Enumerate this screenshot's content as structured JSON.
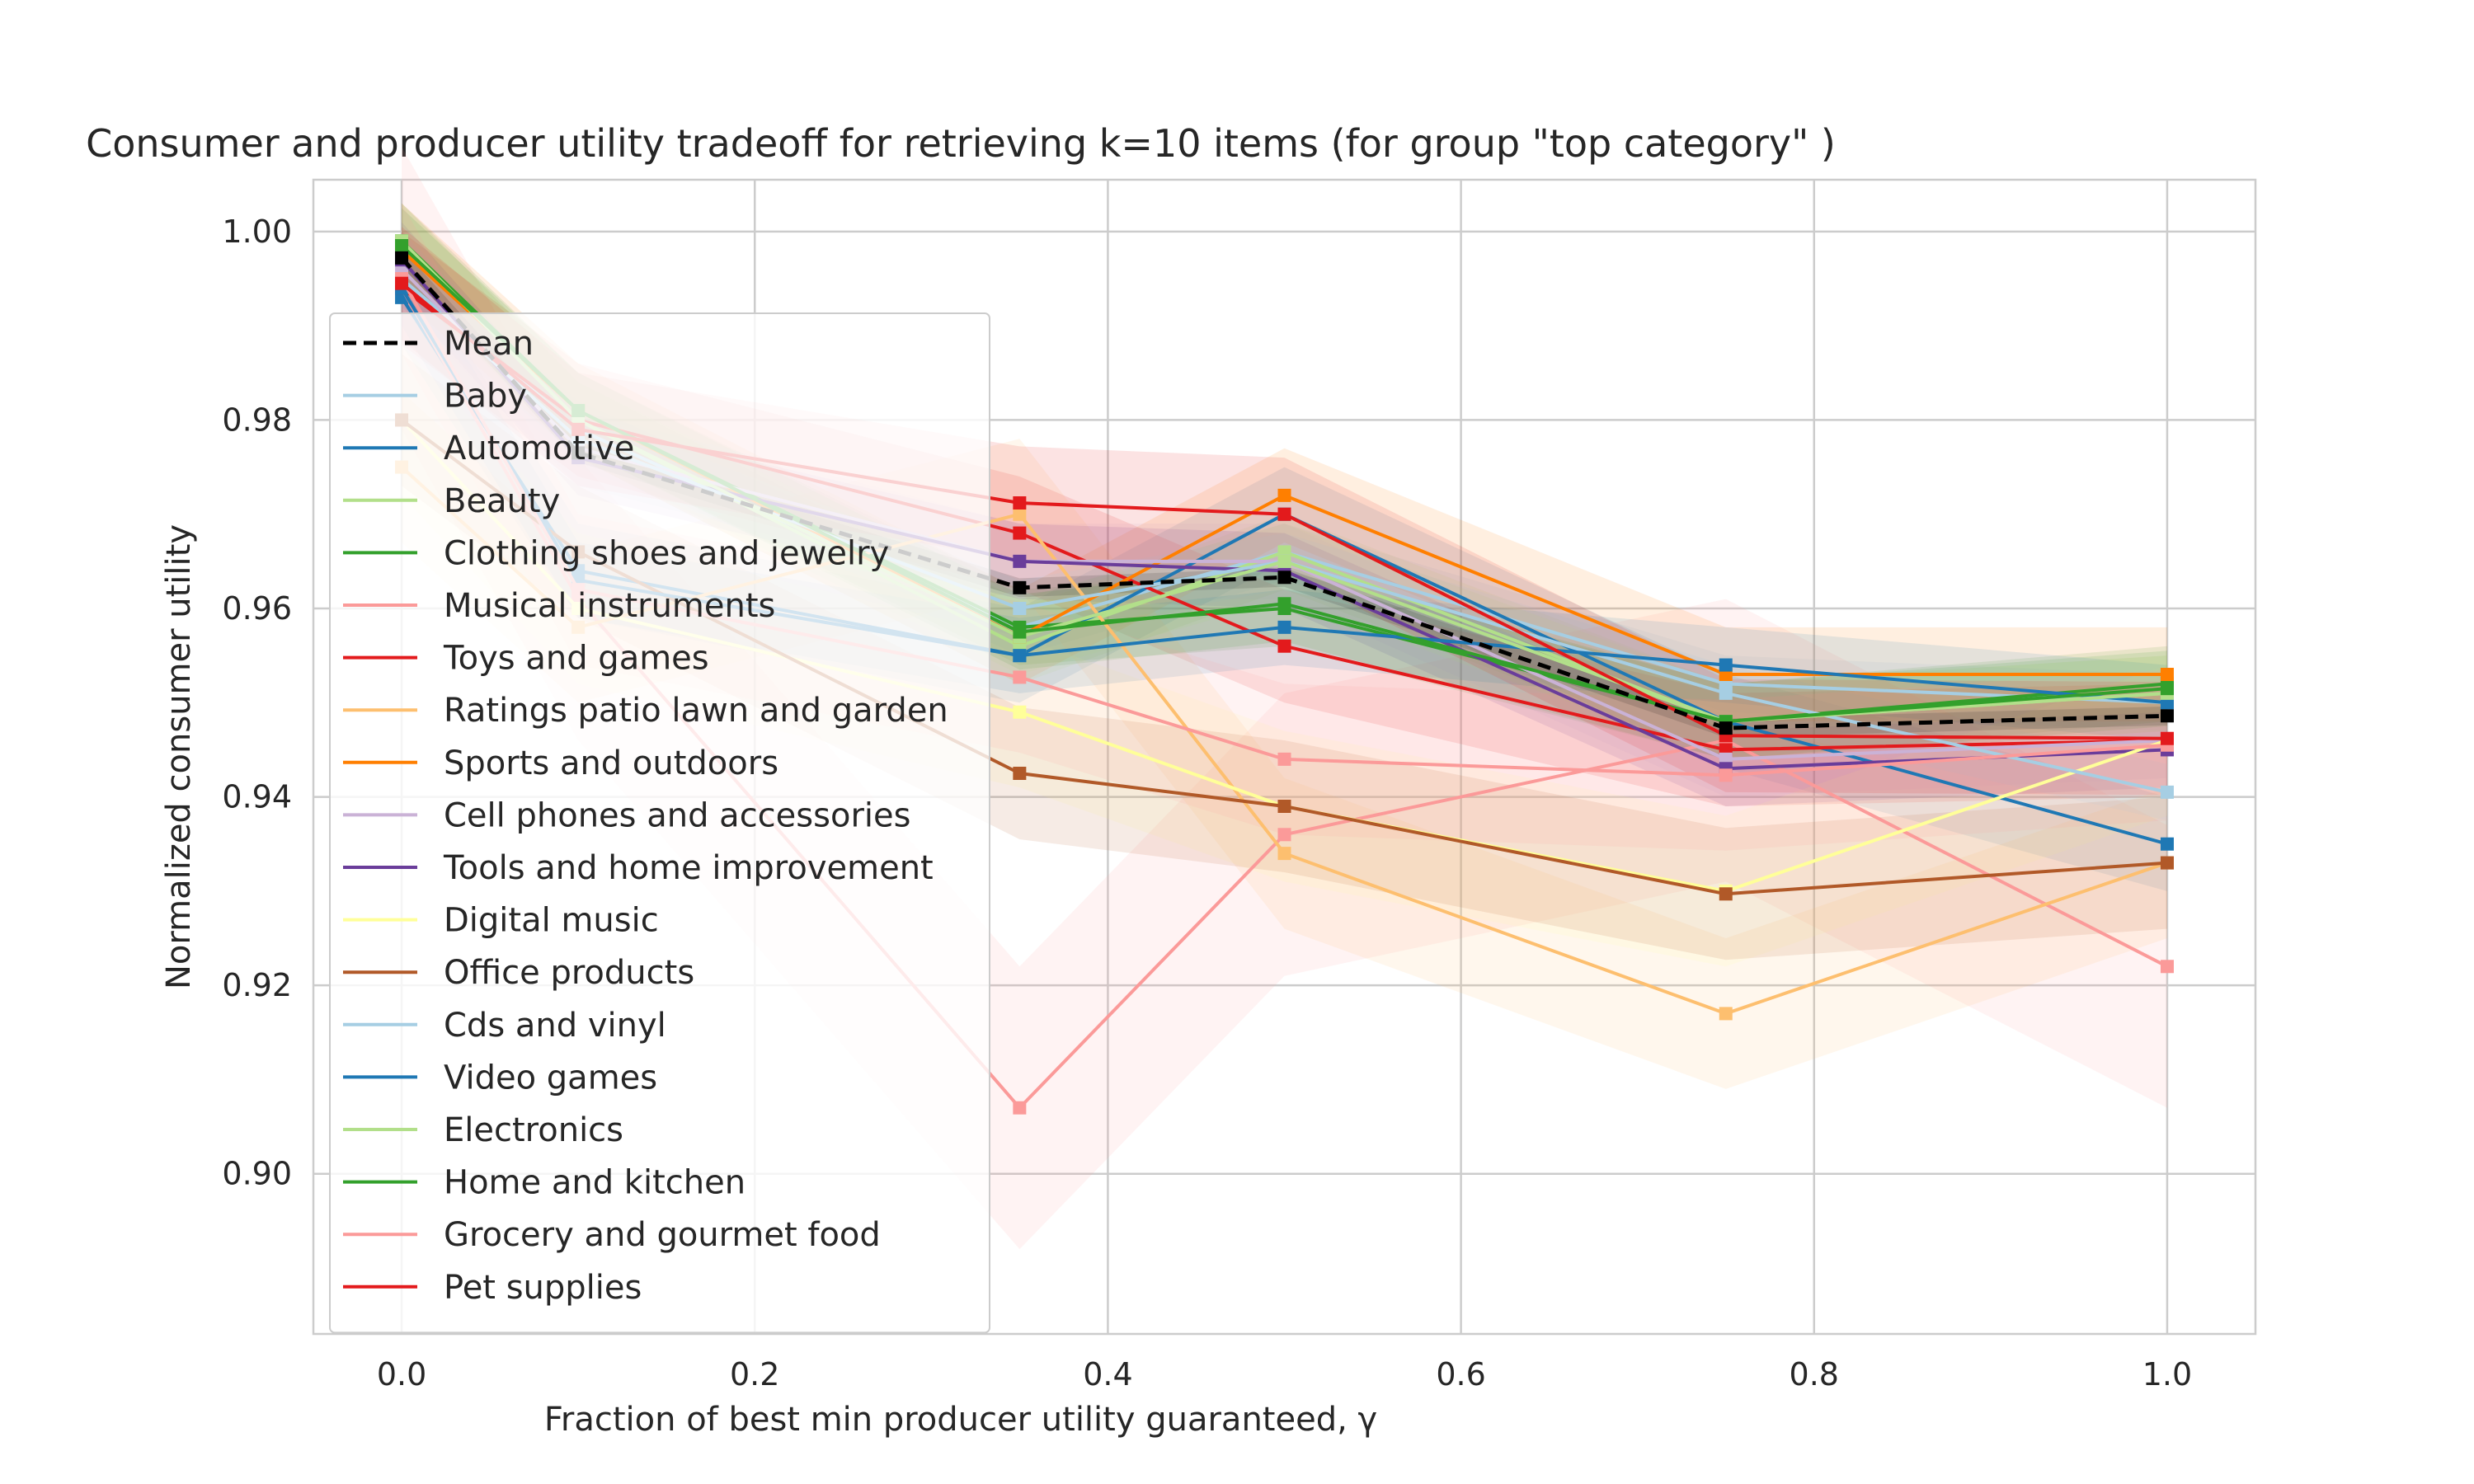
{
  "chart_data": {
    "type": "line",
    "title": "Consumer and producer utility tradeoff for retrieving k=10 items (for group \"top category\" )",
    "xlabel": "Fraction of best min producer utility guaranteed, γ",
    "ylabel": "Normalized consumer utility",
    "xlim": [
      -0.05,
      1.05
    ],
    "ylim": [
      0.883,
      1.0055
    ],
    "xticks": [
      0.0,
      0.2,
      0.4,
      0.6,
      0.8,
      1.0
    ],
    "xtick_labels": [
      "0.0",
      "0.2",
      "0.4",
      "0.6",
      "0.8",
      "1.0"
    ],
    "yticks": [
      0.9,
      0.92,
      0.94,
      0.96,
      0.98,
      1.0
    ],
    "ytick_labels": [
      "0.90",
      "0.92",
      "0.94",
      "0.96",
      "0.98",
      "1.00"
    ],
    "grid": true,
    "legend_position": "left",
    "x": [
      0.0,
      0.1,
      0.35,
      0.5,
      0.75,
      1.0
    ],
    "series": [
      {
        "name": "Mean",
        "color": "#000000",
        "dashed": true,
        "values": [
          0.9972,
          0.9765,
          0.9622,
          0.9633,
          0.9473,
          0.9486
        ],
        "band": 0.001
      },
      {
        "name": "Baby",
        "color": "#a6cee3",
        "values": [
          0.995,
          0.979,
          0.958,
          0.966,
          0.952,
          0.95
        ],
        "band": 0.003
      },
      {
        "name": "Automotive",
        "color": "#1f78b4",
        "values": [
          0.993,
          0.964,
          0.955,
          0.97,
          0.948,
          0.935
        ],
        "band": 0.005
      },
      {
        "name": "Beauty",
        "color": "#b2df8a",
        "values": [
          0.999,
          0.98,
          0.956,
          0.966,
          0.948,
          0.951
        ],
        "band": 0.004
      },
      {
        "name": "Clothing shoes and jewelry",
        "color": "#33a02c",
        "values": [
          0.999,
          0.981,
          0.958,
          0.96,
          0.948,
          0.952
        ],
        "band": 0.004
      },
      {
        "name": "Musical instruments",
        "color": "#fb9a99",
        "values": [
          0.994,
          0.961,
          0.907,
          0.936,
          0.946,
          0.922
        ],
        "band": 0.015
      },
      {
        "name": "Toys and games",
        "color": "#e31a1c",
        "values": [
          0.994,
          0.98,
          0.968,
          0.956,
          0.945,
          0.946
        ],
        "band": 0.006
      },
      {
        "name": "Ratings patio lawn and garden",
        "color": "#fdbf6f",
        "values": [
          0.975,
          0.958,
          0.97,
          0.934,
          0.917,
          0.933
        ],
        "band": 0.008
      },
      {
        "name": "Sports and outdoors",
        "color": "#ff7f00",
        "values": [
          0.998,
          0.981,
          0.957,
          0.972,
          0.953,
          0.953
        ],
        "band": 0.005
      },
      {
        "name": "Cell phones and accessories",
        "color": "#cab2d6",
        "values": [
          0.996,
          0.977,
          0.965,
          0.965,
          0.944,
          0.946
        ],
        "band": 0.004
      },
      {
        "name": "Tools and home improvement",
        "color": "#6a3d9a",
        "values": [
          0.997,
          0.976,
          0.965,
          0.964,
          0.943,
          0.945
        ],
        "band": 0.004
      },
      {
        "name": "Digital music",
        "color": "#ffff99",
        "values": [
          0.98,
          0.96,
          0.949,
          0.939,
          0.93,
          0.946
        ],
        "band": 0.008
      },
      {
        "name": "Office products",
        "color": "#b15928",
        "values": [
          0.98,
          0.966,
          0.9425,
          0.939,
          0.9297,
          0.933
        ],
        "band": 0.007
      },
      {
        "name": "Cds and vinyl",
        "color": "#a6cee3",
        "values": [
          0.995,
          0.978,
          0.96,
          0.965,
          0.951,
          0.9405
        ],
        "band": 0.003
      },
      {
        "name": "Video games",
        "color": "#1f78b4",
        "values": [
          0.994,
          0.963,
          0.955,
          0.958,
          0.954,
          0.95
        ],
        "band": 0.004
      },
      {
        "name": "Electronics",
        "color": "#b2df8a",
        "values": [
          0.999,
          0.98,
          0.957,
          0.965,
          0.948,
          0.951
        ],
        "band": 0.004
      },
      {
        "name": "Home and kitchen",
        "color": "#33a02c",
        "values": [
          0.9985,
          0.981,
          0.9575,
          0.9605,
          0.948,
          0.9515
        ],
        "band": 0.004
      },
      {
        "name": "Grocery and gourmet food",
        "color": "#fb9a99",
        "values": [
          0.995,
          0.962,
          0.9527,
          0.944,
          0.9423,
          0.9455
        ],
        "band": 0.008
      },
      {
        "name": "Pet supplies",
        "color": "#e31a1c",
        "values": [
          0.9945,
          0.979,
          0.9712,
          0.97,
          0.9465,
          0.9462
        ],
        "band": 0.006
      }
    ]
  }
}
